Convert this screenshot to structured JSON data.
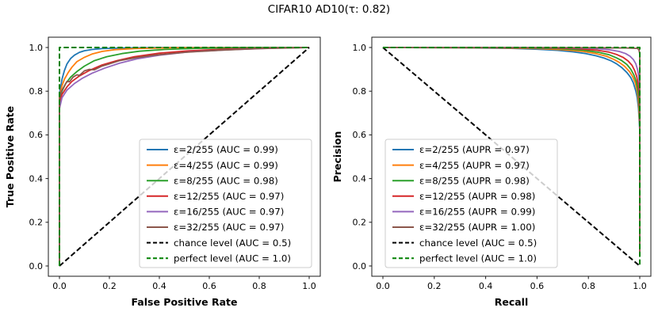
{
  "title": "CIFAR10 AD10(τ: 0.82)",
  "accent_colors": {
    "blue": "#1f77b4",
    "orange": "#ff7f0e",
    "green": "#2ca02c",
    "red": "#d62728",
    "purple": "#9467bd",
    "brown": "#8c564b",
    "chance_black": "#000000",
    "perfect_green": "#008000"
  },
  "chart_data": [
    {
      "type": "line",
      "name": "roc",
      "xlabel": "False Positive Rate",
      "ylabel": "True Positive Rate",
      "xlim": [
        -0.045,
        1.045
      ],
      "ylim": [
        -0.045,
        1.045
      ],
      "grid": false,
      "legend_position": "lower right",
      "xticks": {
        "values": [
          0,
          0.2,
          0.4,
          0.6,
          0.8,
          1.0
        ],
        "labels": [
          "0.0",
          "0.2",
          "0.4",
          "0.6",
          "0.8",
          "1.0"
        ]
      },
      "yticks": {
        "values": [
          0,
          0.2,
          0.4,
          0.6,
          0.8,
          1.0
        ],
        "labels": [
          "0.0",
          "0.2",
          "0.4",
          "0.6",
          "0.8",
          "1.0"
        ]
      },
      "series": [
        {
          "label": "ε=2/255 (AUC = 0.99)",
          "color": "#1f77b4",
          "dash": null,
          "points": [
            [
              0,
              0
            ],
            [
              0,
              0.79
            ],
            [
              0.005,
              0.82
            ],
            [
              0.01,
              0.855
            ],
            [
              0.02,
              0.895
            ],
            [
              0.03,
              0.925
            ],
            [
              0.045,
              0.95
            ],
            [
              0.06,
              0.965
            ],
            [
              0.08,
              0.978
            ],
            [
              0.1,
              0.985
            ],
            [
              0.13,
              0.991
            ],
            [
              0.17,
              0.995
            ],
            [
              0.25,
              0.998
            ],
            [
              0.4,
              1
            ],
            [
              1,
              1
            ]
          ]
        },
        {
          "label": "ε=4/255 (AUC = 0.99)",
          "color": "#ff7f0e",
          "dash": null,
          "points": [
            [
              0,
              0
            ],
            [
              0,
              0.775
            ],
            [
              0.01,
              0.825
            ],
            [
              0.02,
              0.855
            ],
            [
              0.035,
              0.885
            ],
            [
              0.05,
              0.91
            ],
            [
              0.07,
              0.935
            ],
            [
              0.1,
              0.955
            ],
            [
              0.13,
              0.97
            ],
            [
              0.17,
              0.982
            ],
            [
              0.22,
              0.99
            ],
            [
              0.3,
              0.995
            ],
            [
              0.45,
              0.999
            ],
            [
              1,
              1
            ]
          ]
        },
        {
          "label": "ε=8/255 (AUC = 0.98)",
          "color": "#2ca02c",
          "dash": null,
          "points": [
            [
              0,
              0
            ],
            [
              0,
              0.755
            ],
            [
              0.01,
              0.8
            ],
            [
              0.025,
              0.835
            ],
            [
              0.045,
              0.865
            ],
            [
              0.07,
              0.89
            ],
            [
              0.1,
              0.915
            ],
            [
              0.14,
              0.94
            ],
            [
              0.19,
              0.958
            ],
            [
              0.25,
              0.972
            ],
            [
              0.32,
              0.983
            ],
            [
              0.42,
              0.991
            ],
            [
              0.55,
              0.996
            ],
            [
              0.75,
              0.999
            ],
            [
              1,
              1
            ]
          ]
        },
        {
          "label": "ε=12/255 (AUC = 0.97)",
          "color": "#d62728",
          "dash": null,
          "points": [
            [
              0,
              0
            ],
            [
              0,
              0.745
            ],
            [
              0.01,
              0.785
            ],
            [
              0.03,
              0.82
            ],
            [
              0.05,
              0.845
            ],
            [
              0.08,
              0.87
            ],
            [
              0.12,
              0.895
            ],
            [
              0.17,
              0.92
            ],
            [
              0.23,
              0.94
            ],
            [
              0.3,
              0.958
            ],
            [
              0.4,
              0.974
            ],
            [
              0.52,
              0.985
            ],
            [
              0.68,
              0.993
            ],
            [
              0.85,
              0.998
            ],
            [
              1,
              1
            ]
          ]
        },
        {
          "label": "ε=16/255 (AUC = 0.97)",
          "color": "#9467bd",
          "dash": null,
          "points": [
            [
              0,
              0
            ],
            [
              0,
              0.72
            ],
            [
              0.01,
              0.77
            ],
            [
              0.03,
              0.805
            ],
            [
              0.06,
              0.835
            ],
            [
              0.09,
              0.858
            ],
            [
              0.13,
              0.882
            ],
            [
              0.18,
              0.905
            ],
            [
              0.24,
              0.928
            ],
            [
              0.31,
              0.948
            ],
            [
              0.4,
              0.965
            ],
            [
              0.52,
              0.98
            ],
            [
              0.68,
              0.99
            ],
            [
              0.85,
              0.997
            ],
            [
              1,
              1
            ]
          ]
        },
        {
          "label": "ε=32/255 (AUC = 0.97)",
          "color": "#8c564b",
          "dash": null,
          "points": [
            [
              0,
              0
            ],
            [
              0,
              0.765
            ],
            [
              0.008,
              0.8
            ],
            [
              0.02,
              0.825
            ],
            [
              0.03,
              0.845
            ],
            [
              0.04,
              0.843
            ],
            [
              0.055,
              0.865
            ],
            [
              0.07,
              0.875
            ],
            [
              0.08,
              0.872
            ],
            [
              0.1,
              0.893
            ],
            [
              0.12,
              0.9
            ],
            [
              0.14,
              0.898
            ],
            [
              0.17,
              0.915
            ],
            [
              0.2,
              0.925
            ],
            [
              0.24,
              0.94
            ],
            [
              0.3,
              0.952
            ],
            [
              0.38,
              0.965
            ],
            [
              0.5,
              0.978
            ],
            [
              0.65,
              0.988
            ],
            [
              0.8,
              0.995
            ],
            [
              1,
              1
            ]
          ]
        },
        {
          "label": "chance level (AUC = 0.5)",
          "color": "#000000",
          "dash": [
            6.5,
            3.2
          ],
          "points": [
            [
              0,
              0
            ],
            [
              1,
              1
            ]
          ]
        },
        {
          "label": "perfect level (AUC = 1.0)",
          "color": "#008000",
          "dash": [
            6.5,
            3.2
          ],
          "points": [
            [
              0,
              0
            ],
            [
              0,
              1
            ],
            [
              1,
              1
            ]
          ]
        }
      ]
    },
    {
      "type": "line",
      "name": "pr",
      "xlabel": "Recall",
      "ylabel": "Precision",
      "xlim": [
        -0.045,
        1.045
      ],
      "ylim": [
        -0.045,
        1.045
      ],
      "grid": false,
      "legend_position": "lower center",
      "xticks": {
        "values": [
          0,
          0.2,
          0.4,
          0.6,
          0.8,
          1.0
        ],
        "labels": [
          "0.0",
          "0.2",
          "0.4",
          "0.6",
          "0.8",
          "1.0"
        ]
      },
      "yticks": {
        "values": [
          0,
          0.2,
          0.4,
          0.6,
          0.8,
          1.0
        ],
        "labels": [
          "0.0",
          "0.2",
          "0.4",
          "0.6",
          "0.8",
          "1.0"
        ]
      },
      "series": [
        {
          "label": "ε=2/255 (AUPR = 0.97)",
          "color": "#1f77b4",
          "dash": null,
          "points": [
            [
              0,
              1
            ],
            [
              0.3,
              0.999
            ],
            [
              0.5,
              0.996
            ],
            [
              0.6,
              0.992
            ],
            [
              0.68,
              0.987
            ],
            [
              0.74,
              0.98
            ],
            [
              0.79,
              0.972
            ],
            [
              0.83,
              0.962
            ],
            [
              0.86,
              0.952
            ],
            [
              0.89,
              0.938
            ],
            [
              0.91,
              0.925
            ],
            [
              0.93,
              0.908
            ],
            [
              0.95,
              0.885
            ],
            [
              0.965,
              0.862
            ],
            [
              0.975,
              0.838
            ],
            [
              0.985,
              0.8
            ],
            [
              0.99,
              0.77
            ],
            [
              0.995,
              0.72
            ],
            [
              1,
              0.62
            ],
            [
              1,
              0.05
            ]
          ]
        },
        {
          "label": "ε=4/255 (AUPR = 0.97)",
          "color": "#ff7f0e",
          "dash": null,
          "points": [
            [
              0,
              1
            ],
            [
              0.4,
              0.999
            ],
            [
              0.6,
              0.995
            ],
            [
              0.7,
              0.99
            ],
            [
              0.78,
              0.982
            ],
            [
              0.83,
              0.972
            ],
            [
              0.87,
              0.96
            ],
            [
              0.9,
              0.945
            ],
            [
              0.92,
              0.932
            ],
            [
              0.94,
              0.915
            ],
            [
              0.96,
              0.89
            ],
            [
              0.972,
              0.868
            ],
            [
              0.982,
              0.84
            ],
            [
              0.99,
              0.8
            ],
            [
              0.995,
              0.75
            ],
            [
              1,
              0.64
            ],
            [
              1,
              0.05
            ]
          ]
        },
        {
          "label": "ε=8/255 (AUPR = 0.98)",
          "color": "#2ca02c",
          "dash": null,
          "points": [
            [
              0,
              1
            ],
            [
              0.5,
              0.999
            ],
            [
              0.68,
              0.995
            ],
            [
              0.78,
              0.988
            ],
            [
              0.84,
              0.978
            ],
            [
              0.88,
              0.967
            ],
            [
              0.91,
              0.952
            ],
            [
              0.93,
              0.94
            ],
            [
              0.95,
              0.922
            ],
            [
              0.965,
              0.9
            ],
            [
              0.977,
              0.875
            ],
            [
              0.986,
              0.845
            ],
            [
              0.992,
              0.81
            ],
            [
              0.997,
              0.76
            ],
            [
              1,
              0.66
            ],
            [
              1,
              0.05
            ]
          ]
        },
        {
          "label": "ε=12/255 (AUPR = 0.98)",
          "color": "#d62728",
          "dash": null,
          "points": [
            [
              0,
              1
            ],
            [
              0.6,
              0.999
            ],
            [
              0.75,
              0.995
            ],
            [
              0.83,
              0.988
            ],
            [
              0.88,
              0.979
            ],
            [
              0.91,
              0.968
            ],
            [
              0.935,
              0.955
            ],
            [
              0.955,
              0.938
            ],
            [
              0.97,
              0.918
            ],
            [
              0.98,
              0.895
            ],
            [
              0.988,
              0.868
            ],
            [
              0.994,
              0.83
            ],
            [
              0.998,
              0.78
            ],
            [
              1,
              0.68
            ],
            [
              1,
              0.05
            ]
          ]
        },
        {
          "label": "ε=16/255 (AUPR = 0.99)",
          "color": "#9467bd",
          "dash": null,
          "points": [
            [
              0,
              1
            ],
            [
              0.7,
              0.999
            ],
            [
              0.82,
              0.996
            ],
            [
              0.88,
              0.99
            ],
            [
              0.92,
              0.982
            ],
            [
              0.945,
              0.972
            ],
            [
              0.962,
              0.96
            ],
            [
              0.975,
              0.945
            ],
            [
              0.985,
              0.925
            ],
            [
              0.991,
              0.9
            ],
            [
              0.996,
              0.868
            ],
            [
              0.999,
              0.82
            ],
            [
              1,
              0.74
            ],
            [
              1,
              0.05
            ]
          ]
        },
        {
          "label": "ε=32/255 (AUPR = 1.00)",
          "color": "#8c564b",
          "dash": null,
          "points": [
            [
              0,
              1
            ],
            [
              0.8,
              0.999
            ],
            [
              0.95,
              0.998
            ],
            [
              0.99,
              0.996
            ],
            [
              0.997,
              0.99
            ],
            [
              1,
              0.97
            ],
            [
              1,
              0.05
            ]
          ]
        },
        {
          "label": "chance level (AUC = 0.5)",
          "color": "#000000",
          "dash": [
            6.5,
            3.2
          ],
          "points": [
            [
              0,
              1
            ],
            [
              1,
              0
            ]
          ]
        },
        {
          "label": "perfect level (AUC = 1.0)",
          "color": "#008000",
          "dash": [
            6.5,
            3.2
          ],
          "points": [
            [
              0,
              1
            ],
            [
              1,
              1
            ],
            [
              1,
              0
            ]
          ]
        }
      ]
    }
  ]
}
